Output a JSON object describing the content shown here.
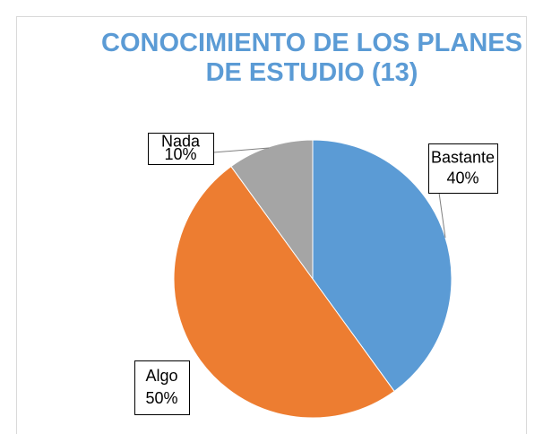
{
  "chart_data": {
    "type": "pie",
    "title": "CONOCIMIENTO DE LOS PLANES DE ESTUDIO (13)",
    "categories": [
      "Bastante",
      "Algo",
      "Nada"
    ],
    "values": [
      40,
      50,
      10
    ],
    "value_labels": [
      "40%",
      "50%",
      "10%"
    ],
    "colors": [
      "#5b9bd5",
      "#ed7d31",
      "#a5a5a5"
    ]
  }
}
